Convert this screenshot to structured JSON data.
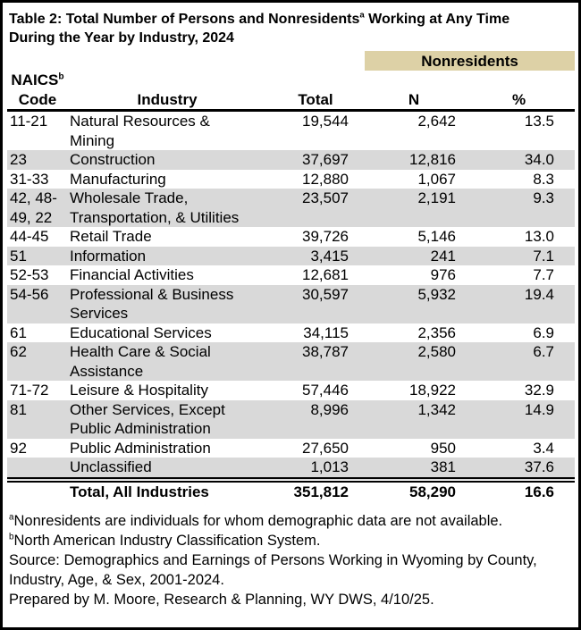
{
  "title": {
    "line1_part1": "Table 2: Total Number of Persons and Nonresidents",
    "line1_sup": "a",
    "line1_part2": " Working at Any Time",
    "line2": "During the Year by Industry, 2024"
  },
  "table": {
    "banner_label": "Nonresidents",
    "headers": {
      "naics_line1": "NAICS",
      "naics_sup": "b",
      "naics_line2": "Code",
      "industry": "Industry",
      "total": "Total",
      "n": "N",
      "pct": "%"
    },
    "rows": [
      {
        "code": "11-21",
        "industry": [
          "Natural Resources &",
          "Mining"
        ],
        "total": "19,544",
        "n": "2,642",
        "pct": "13.5"
      },
      {
        "code": "23",
        "industry": "Construction",
        "total": "37,697",
        "n": "12,816",
        "pct": "34.0"
      },
      {
        "code": "31-33",
        "industry": "Manufacturing",
        "total": "12,880",
        "n": "1,067",
        "pct": "8.3"
      },
      {
        "code": [
          "42, 48-",
          "49, 22"
        ],
        "industry": [
          "Wholesale Trade,",
          "Transportation, & Utilities"
        ],
        "total": "23,507",
        "n": "2,191",
        "pct": "9.3"
      },
      {
        "code": "44-45",
        "industry": "Retail Trade",
        "total": "39,726",
        "n": "5,146",
        "pct": "13.0"
      },
      {
        "code": "51",
        "industry": "Information",
        "total": "3,415",
        "n": "241",
        "pct": "7.1"
      },
      {
        "code": "52-53",
        "industry": "Financial Activities",
        "total": "12,681",
        "n": "976",
        "pct": "7.7"
      },
      {
        "code": "54-56",
        "industry": [
          "Professional & Business",
          "Services"
        ],
        "total": "30,597",
        "n": "5,932",
        "pct": "19.4"
      },
      {
        "code": "61",
        "industry": "Educational Services",
        "total": "34,115",
        "n": "2,356",
        "pct": "6.9"
      },
      {
        "code": "62",
        "industry": [
          "Health Care & Social",
          "Assistance"
        ],
        "total": "38,787",
        "n": "2,580",
        "pct": "6.7"
      },
      {
        "code": "71-72",
        "industry": "Leisure & Hospitality",
        "total": "57,446",
        "n": "18,922",
        "pct": "32.9"
      },
      {
        "code": "81",
        "industry": [
          "Other Services, Except",
          "Public Administration"
        ],
        "total": "8,996",
        "n": "1,342",
        "pct": "14.9"
      },
      {
        "code": "92",
        "industry": "Public Administration",
        "total": "27,650",
        "n": "950",
        "pct": "3.4"
      },
      {
        "code": "",
        "industry": "Unclassified",
        "total": "1,013",
        "n": "381",
        "pct": "37.6"
      }
    ],
    "total_row": {
      "label": "Total, All Industries",
      "total": "351,812",
      "n": "58,290",
      "pct": "16.6"
    }
  },
  "footnotes": [
    {
      "sup": "a",
      "lines": [
        "Nonresidents are individuals for whom demographic data are not available."
      ]
    },
    {
      "sup": "b",
      "lines": [
        "North American Industry Classification System."
      ]
    },
    {
      "lines": [
        "Source: Demographics and Earnings of Persons Working in Wyoming by County,",
        "Industry, Age, & Sex, 2001-2024."
      ]
    },
    {
      "lines": [
        "Prepared by M. Moore, Research & Planning, WY DWS, 4/10/25."
      ]
    }
  ],
  "colors": {
    "banner_bg": "#ddd1a6",
    "row_shade": "#d9d9d9",
    "border": "#000000",
    "text": "#000000"
  }
}
